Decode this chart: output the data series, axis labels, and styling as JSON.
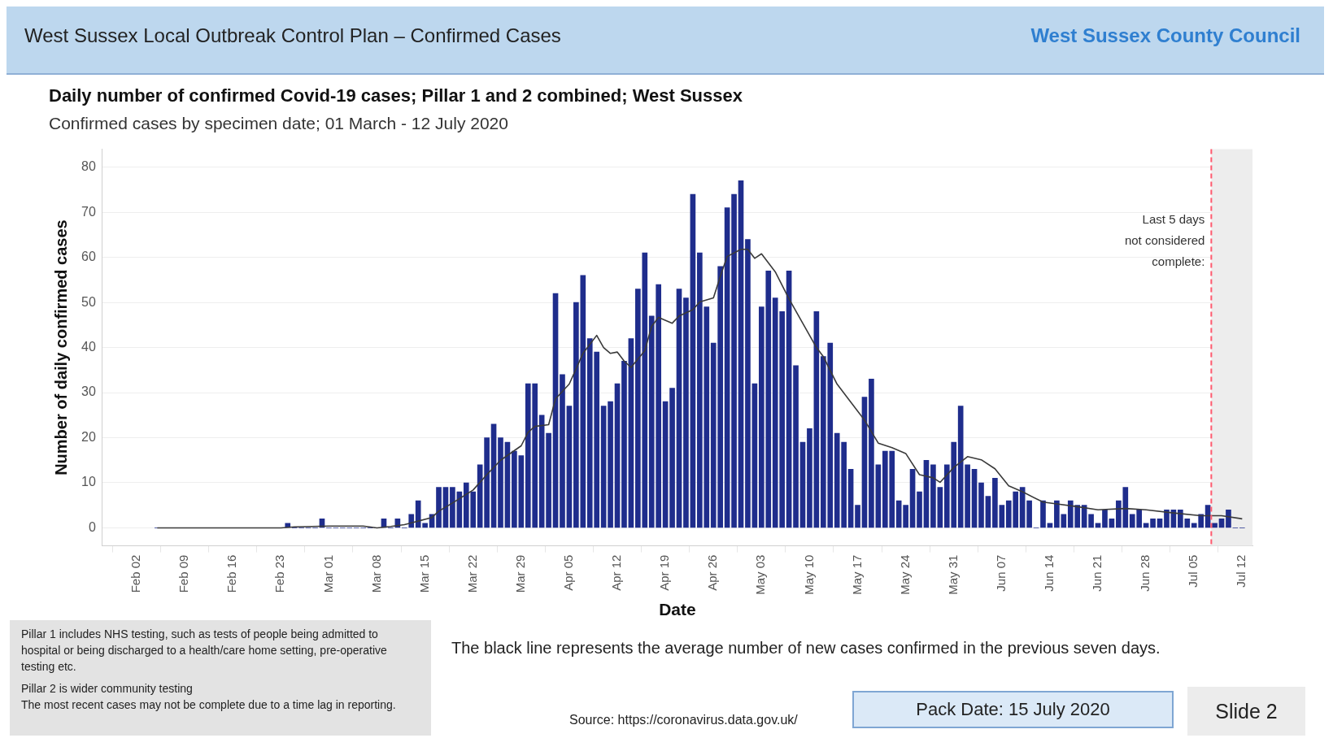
{
  "chart_data": {
    "type": "bar",
    "title": "Daily number of confirmed Covid-19 cases; Pillar 1 and 2 combined; West Sussex",
    "subtitle": "Confirmed cases by specimen date; 01 March - 12 July 2020",
    "xlabel": "Date",
    "ylabel": "Number of daily confirmed cases",
    "xlim": [
      "2020-01-28",
      "2020-07-13T12:00"
    ],
    "xticks": [
      {
        "value": "2020-02-02",
        "label": "Feb 02"
      },
      {
        "value": "2020-02-09",
        "label": "Feb 09"
      },
      {
        "value": "2020-02-16",
        "label": "Feb 16"
      },
      {
        "value": "2020-02-23",
        "label": "Feb 23"
      },
      {
        "value": "2020-03-01",
        "label": "Mar 01"
      },
      {
        "value": "2020-03-08",
        "label": "Mar 08"
      },
      {
        "value": "2020-03-15",
        "label": "Mar 15"
      },
      {
        "value": "2020-03-22",
        "label": "Mar 22"
      },
      {
        "value": "2020-03-29",
        "label": "Mar 29"
      },
      {
        "value": "2020-04-05",
        "label": "Apr 05"
      },
      {
        "value": "2020-04-12",
        "label": "Apr 12"
      },
      {
        "value": "2020-04-19",
        "label": "Apr 19"
      },
      {
        "value": "2020-04-26",
        "label": "Apr 26"
      },
      {
        "value": "2020-05-03",
        "label": "May 03"
      },
      {
        "value": "2020-05-10",
        "label": "May 10"
      },
      {
        "value": "2020-05-17",
        "label": "May 17"
      },
      {
        "value": "2020-05-24",
        "label": "May 24"
      },
      {
        "value": "2020-05-31",
        "label": "May 31"
      },
      {
        "value": "2020-06-07",
        "label": "Jun 07"
      },
      {
        "value": "2020-06-14",
        "label": "Jun 14"
      },
      {
        "value": "2020-06-21",
        "label": "Jun 21"
      },
      {
        "value": "2020-06-28",
        "label": "Jun 28"
      },
      {
        "value": "2020-07-05",
        "label": "Jul 05"
      },
      {
        "value": "2020-07-12",
        "label": "Jul 12"
      }
    ],
    "ylim": [
      -4,
      84
    ],
    "yticks": [
      0,
      10,
      20,
      30,
      40,
      50,
      60,
      70,
      80
    ],
    "grid": "y",
    "marker": "none",
    "line_style": "solid",
    "series": [
      {
        "color": "#1f2d8c",
        "x": [
          "2020-02-05",
          "2020-02-06",
          "2020-02-07",
          "2020-02-08",
          "2020-02-09",
          "2020-02-10",
          "2020-02-11",
          "2020-02-12",
          "2020-02-13",
          "2020-02-14",
          "2020-02-15",
          "2020-02-16",
          "2020-02-17",
          "2020-02-18",
          "2020-02-19",
          "2020-02-20",
          "2020-02-21",
          "2020-02-22",
          "2020-02-23",
          "2020-02-24",
          "2020-02-25",
          "2020-02-26",
          "2020-02-27",
          "2020-02-28",
          "2020-02-29",
          "2020-03-01",
          "2020-03-02",
          "2020-03-03",
          "2020-03-04",
          "2020-03-05",
          "2020-03-06",
          "2020-03-07",
          "2020-03-08",
          "2020-03-09",
          "2020-03-10",
          "2020-03-11",
          "2020-03-12",
          "2020-03-13",
          "2020-03-14",
          "2020-03-15",
          "2020-03-16",
          "2020-03-17",
          "2020-03-18",
          "2020-03-19",
          "2020-03-20",
          "2020-03-21",
          "2020-03-22",
          "2020-03-23",
          "2020-03-24",
          "2020-03-25",
          "2020-03-26",
          "2020-03-27",
          "2020-03-28",
          "2020-03-29",
          "2020-03-30",
          "2020-03-31",
          "2020-04-01",
          "2020-04-02",
          "2020-04-03",
          "2020-04-04",
          "2020-04-05",
          "2020-04-06",
          "2020-04-07",
          "2020-04-08",
          "2020-04-09",
          "2020-04-10",
          "2020-04-11",
          "2020-04-12",
          "2020-04-13",
          "2020-04-14",
          "2020-04-15",
          "2020-04-16",
          "2020-04-17",
          "2020-04-18",
          "2020-04-19",
          "2020-04-20",
          "2020-04-21",
          "2020-04-22",
          "2020-04-23",
          "2020-04-24",
          "2020-04-25",
          "2020-04-26",
          "2020-04-27",
          "2020-04-28",
          "2020-04-29",
          "2020-04-30",
          "2020-05-01",
          "2020-05-02",
          "2020-05-03",
          "2020-05-04",
          "2020-05-05",
          "2020-05-06",
          "2020-05-07",
          "2020-05-08",
          "2020-05-09",
          "2020-05-10",
          "2020-05-11",
          "2020-05-12",
          "2020-05-13",
          "2020-05-14",
          "2020-05-15",
          "2020-05-16",
          "2020-05-17",
          "2020-05-18",
          "2020-05-19",
          "2020-05-20",
          "2020-05-21",
          "2020-05-22",
          "2020-05-23",
          "2020-05-24",
          "2020-05-25",
          "2020-05-26",
          "2020-05-27",
          "2020-05-28",
          "2020-05-29",
          "2020-05-30",
          "2020-05-31",
          "2020-06-01",
          "2020-06-02",
          "2020-06-03",
          "2020-06-04",
          "2020-06-05",
          "2020-06-06",
          "2020-06-07",
          "2020-06-08",
          "2020-06-09",
          "2020-06-10",
          "2020-06-11",
          "2020-06-12",
          "2020-06-13",
          "2020-06-14",
          "2020-06-15",
          "2020-06-16",
          "2020-06-17",
          "2020-06-18",
          "2020-06-19",
          "2020-06-20",
          "2020-06-21",
          "2020-06-22",
          "2020-06-23",
          "2020-06-24",
          "2020-06-25",
          "2020-06-26",
          "2020-06-27",
          "2020-06-28",
          "2020-06-29",
          "2020-06-30",
          "2020-07-01",
          "2020-07-02",
          "2020-07-03",
          "2020-07-04",
          "2020-07-05",
          "2020-07-06",
          "2020-07-07",
          "2020-07-08",
          "2020-07-09",
          "2020-07-10",
          "2020-07-11",
          "2020-07-12"
        ],
        "values": [
          0,
          0,
          0,
          0,
          0,
          0,
          0,
          0,
          0,
          0,
          0,
          0,
          0,
          0,
          0,
          0,
          0,
          0,
          0,
          1,
          0,
          0,
          0,
          0,
          2,
          0,
          0,
          0,
          0,
          0,
          0,
          0,
          0,
          2,
          0,
          2,
          0,
          3,
          6,
          1,
          3,
          9,
          9,
          9,
          8,
          10,
          8,
          14,
          20,
          23,
          20,
          19,
          17,
          16,
          32,
          32,
          25,
          21,
          52,
          34,
          27,
          50,
          56,
          42,
          39,
          27,
          28,
          32,
          37,
          42,
          53,
          61,
          47,
          54,
          28,
          31,
          53,
          51,
          74,
          61,
          49,
          41,
          58,
          71,
          74,
          77,
          64,
          32,
          49,
          57,
          51,
          48,
          57,
          36,
          19,
          22,
          48,
          38,
          41,
          21,
          19,
          13,
          5,
          29,
          33,
          14,
          17,
          17,
          6,
          5,
          13,
          8,
          15,
          14,
          9,
          14,
          19,
          27,
          14,
          13,
          10,
          7,
          11,
          5,
          6,
          8,
          9,
          6,
          0,
          6,
          1,
          6,
          3,
          6,
          5,
          5,
          3,
          1,
          4,
          2,
          6,
          9,
          3,
          4,
          1,
          2,
          2,
          4,
          4,
          4,
          2,
          1,
          3,
          5,
          1,
          2,
          4,
          0,
          0
        ]
      },
      {
        "type": "line",
        "color": "#3a3a3a",
        "x": [
          "2020-02-05",
          "2020-02-23",
          "2020-02-25",
          "2020-03-01",
          "2020-03-06",
          "2020-03-08",
          "2020-03-10",
          "2020-03-12",
          "2020-03-14",
          "2020-03-16",
          "2020-03-17",
          "2020-03-19",
          "2020-03-22",
          "2020-03-24",
          "2020-03-26",
          "2020-03-29",
          "2020-03-30",
          "2020-03-31",
          "2020-04-02",
          "2020-04-03",
          "2020-04-05",
          "2020-04-07",
          "2020-04-09",
          "2020-04-10",
          "2020-04-11",
          "2020-04-12",
          "2020-04-13",
          "2020-04-14",
          "2020-04-16",
          "2020-04-17",
          "2020-04-18",
          "2020-04-20",
          "2020-04-21",
          "2020-04-23",
          "2020-04-24",
          "2020-04-26",
          "2020-04-27",
          "2020-04-28",
          "2020-04-30",
          "2020-05-01",
          "2020-05-02",
          "2020-05-03",
          "2020-05-05",
          "2020-05-07",
          "2020-05-09",
          "2020-05-11",
          "2020-05-12",
          "2020-05-14",
          "2020-05-16",
          "2020-05-18",
          "2020-05-20",
          "2020-05-22",
          "2020-05-24",
          "2020-05-26",
          "2020-05-28",
          "2020-05-29",
          "2020-05-31",
          "2020-06-02",
          "2020-06-04",
          "2020-06-06",
          "2020-06-08",
          "2020-06-10",
          "2020-06-13",
          "2020-06-15",
          "2020-06-18",
          "2020-06-21",
          "2020-06-25",
          "2020-06-28",
          "2020-07-02",
          "2020-07-06",
          "2020-07-09",
          "2020-07-12"
        ],
        "values": [
          0,
          0,
          0.2,
          0.4,
          0.4,
          0,
          0.3,
          0.7,
          1.5,
          2.3,
          3.7,
          5.5,
          8.4,
          11.8,
          15,
          18.2,
          21.2,
          22.5,
          22.9,
          28.6,
          31.9,
          38.7,
          42.7,
          40,
          38.7,
          39,
          37,
          35.6,
          39.3,
          44.7,
          46.7,
          45.4,
          47,
          48.4,
          50.1,
          51,
          55.8,
          60.2,
          61.8,
          61.8,
          59.8,
          60.8,
          56.8,
          50.8,
          45.4,
          40,
          38,
          31.9,
          27.9,
          23.9,
          18.8,
          17.8,
          16.5,
          11.8,
          11.1,
          10.1,
          13.4,
          15.8,
          15.1,
          13.1,
          9.3,
          8,
          5.7,
          5.3,
          4.7,
          4,
          4.3,
          4,
          3.3,
          2.7,
          2.7,
          2
        ]
      }
    ],
    "ref_lines": [
      {
        "axis": "x",
        "value": "2020-07-07T12:00",
        "label": "Last 5 days not considered complete:",
        "color": "#ff5a6e",
        "line_style": "dashed"
      }
    ],
    "bands": [
      {
        "axis": "x",
        "from": "2020-07-07T12:00",
        "to": "2020-07-13T12:00",
        "color": "#ededed"
      }
    ],
    "annotations": [
      "West Sussex Local Outbreak Control Plan – Confirmed Cases",
      "West Sussex County Council",
      "The black line represents the average number of new cases confirmed in the previous seven days.",
      "Pillar 1 includes NHS testing, such as tests of people being admitted to hospital or being discharged to a health/care home setting, pre-operative testing etc.",
      "Pillar 2 is wider community testing",
      "The most recent cases may not be complete due to a time lag in reporting.",
      "Source: https://coronavirus.data.gov.uk/",
      "Pack Date: 15 July 2020",
      "Slide 2"
    ]
  }
}
